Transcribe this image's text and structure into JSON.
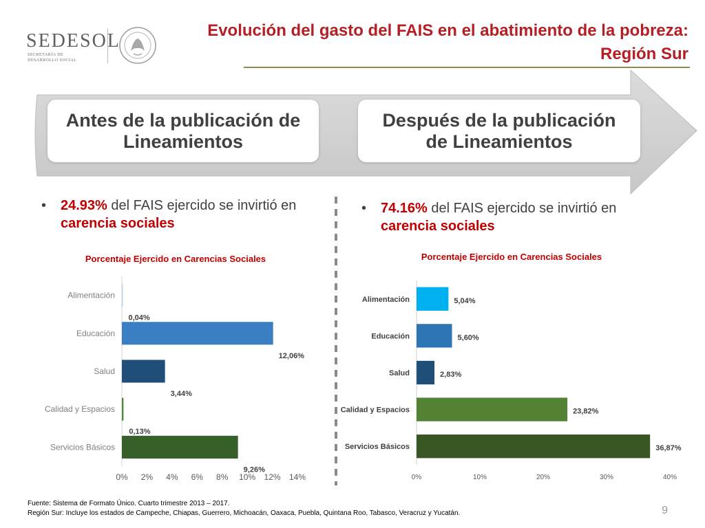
{
  "header": {
    "logo_text": "SEDESOL",
    "logo_sub_1": "SECRETARÍA DE",
    "logo_sub_2": "DESARROLLO SOCIAL",
    "title_line1": "Evolución del gasto del FAIS en el abatimiento de la pobreza:",
    "title_line2": "Región Sur"
  },
  "phases": {
    "before": "Antes de la publicación de Lineamientos",
    "after": "Después de la publicación de Lineamientos"
  },
  "stats": {
    "left": {
      "bullet": "•",
      "value": "24.93%",
      "text_1": " del FAIS ejercido se invirtió en ",
      "highlight": "carencia sociales"
    },
    "right": {
      "bullet": "•",
      "value": "74.16%",
      "text_1": " del FAIS ejercido se invirtió en ",
      "highlight": "carencia sociales"
    }
  },
  "colors": {
    "alimentacion_1": "#bcd7ee",
    "educacion_1": "#3a7fc4",
    "salud_1": "#1f4e79",
    "calidad_1": "#4c8a3a",
    "servicios_1": "#375f2a",
    "alimentacion_2": "#00b0f0",
    "educacion_2": "#2e75b6",
    "salud_2": "#1f4e79",
    "calidad_2": "#548235",
    "servicios_2": "#375623"
  },
  "chart_data": [
    {
      "type": "bar",
      "orientation": "horizontal",
      "title": "Porcentaje Ejercido en Carencias Sociales",
      "categories": [
        "Alimentación",
        "Educación",
        "Salud",
        "Calidad y Espacios",
        "Servicios Básicos"
      ],
      "values": [
        0.04,
        12.06,
        3.44,
        0.13,
        9.26
      ],
      "value_labels": [
        "0,04%",
        "12,06%",
        "3,44%",
        "0,13%",
        "9,26%"
      ],
      "xlim": [
        0,
        14
      ],
      "xticks": [
        0,
        2,
        4,
        6,
        8,
        10,
        12,
        14
      ],
      "xtick_labels": [
        "0%",
        "2%",
        "4%",
        "6%",
        "8%",
        "10%",
        "12%",
        "14%"
      ],
      "grid": false
    },
    {
      "type": "bar",
      "orientation": "horizontal",
      "title": "Porcentaje Ejercido en Carencias Sociales",
      "categories": [
        "Alimentación",
        "Educación",
        "Salud",
        "Calidad y Espacios",
        "Servicios Básicos"
      ],
      "values": [
        5.04,
        5.6,
        2.83,
        23.82,
        36.87
      ],
      "value_labels": [
        "5,04%",
        "5,60%",
        "2,83%",
        "23,82%",
        "36,87%"
      ],
      "xlim": [
        0,
        40
      ],
      "xticks": [
        0,
        10,
        20,
        30,
        40
      ],
      "xtick_labels": [
        "0%",
        "10%",
        "20%",
        "30%",
        "40%"
      ],
      "grid": false
    }
  ],
  "footer": {
    "line1": "Fuente: Sistema de Formato Único. Cuarto trimestre 2013 – 2017.",
    "line2": "Región Sur: Incluye los estados de Campeche, Chiapas, Guerrero, Michoacán, Oaxaca, Puebla, Quintana Roo, Tabasco, Veracruz y Yucatán."
  },
  "page_number": "9"
}
